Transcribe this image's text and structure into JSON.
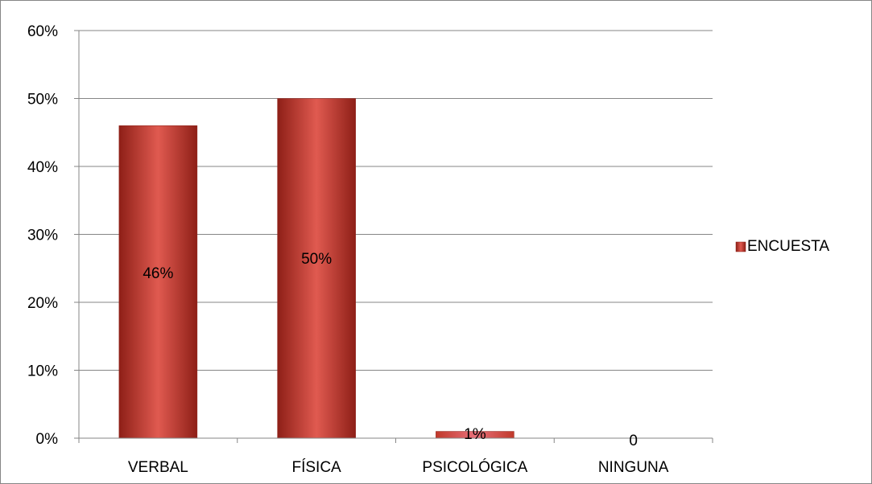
{
  "chart_data": {
    "type": "bar",
    "categories": [
      "VERBAL",
      "FÍSICA",
      "PSICOLÓGICA",
      "NINGUNA"
    ],
    "series": [
      {
        "name": "ENCUESTA",
        "values": [
          0.46,
          0.5,
          0.01,
          0
        ],
        "data_labels": [
          "46%",
          "50%",
          "1%",
          "0"
        ]
      }
    ],
    "ylim": [
      0,
      0.6
    ],
    "y_ticks": [
      0,
      0.1,
      0.2,
      0.3,
      0.4,
      0.5,
      0.6
    ],
    "y_tick_labels": [
      "0%",
      "10%",
      "20%",
      "30%",
      "40%",
      "50%",
      "60%"
    ],
    "grid": true,
    "legend_position": "right",
    "colors": {
      "bar_fill": "#c0392b",
      "bar_light": "#e05a50",
      "bar_dark": "#8e1f17",
      "psico_fill": "#e8707a",
      "grid": "#868686",
      "axis": "#868686"
    }
  }
}
